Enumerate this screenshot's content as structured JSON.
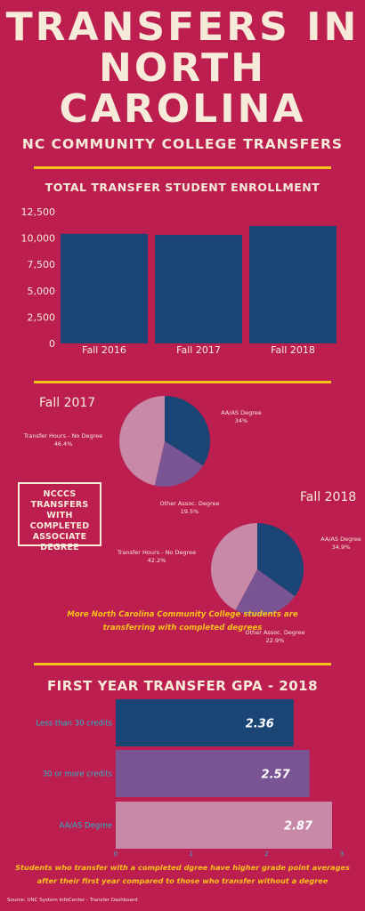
{
  "title": {
    "line1": "TRANSFERS IN",
    "line2": "NORTH",
    "line3": "CAROLINA"
  },
  "subtitle": "NC COMMUNITY COLLEGE TRANSFERS",
  "colors": {
    "background": "#bb1e4f",
    "accent": "#f7c21a",
    "navy": "#1a4574",
    "purple": "#7b5494",
    "pink": "#c889a8"
  },
  "chart_data": [
    {
      "type": "bar",
      "title": "TOTAL TRANSFER STUDENT ENROLLMENT",
      "categories": [
        "Fall 2016",
        "Fall 2017",
        "Fall 2018"
      ],
      "values": [
        10400,
        10300,
        11150
      ],
      "ylim": [
        0,
        12500
      ],
      "yticks": [
        0,
        2500,
        5000,
        7500,
        10000,
        12500
      ],
      "ytick_labels": [
        "0",
        "2,500",
        "5,000",
        "7,500",
        "10,000",
        "12,500"
      ],
      "grid": false
    },
    {
      "type": "pie",
      "title": "Fall 2017",
      "slices": [
        {
          "label": "AA/AS Degree",
          "value": 34,
          "display": "34%"
        },
        {
          "label": "Other Assoc. Degree",
          "value": 19.5,
          "display": "19.5%"
        },
        {
          "label": "Transfer Hours - No Degree",
          "value": 46.4,
          "display": "46.4%"
        }
      ]
    },
    {
      "type": "pie",
      "title": "Fall 2018",
      "slices": [
        {
          "label": "AA/AS Degree",
          "value": 34.9,
          "display": "34.9%"
        },
        {
          "label": "Other Assoc. Degree",
          "value": 22.9,
          "display": "22.9%"
        },
        {
          "label": "Transfer Hours - No Degree",
          "value": 42.2,
          "display": "42.2%"
        }
      ]
    },
    {
      "type": "bar",
      "orientation": "horizontal",
      "title": "FIRST YEAR TRANSFER GPA - 2018",
      "categories": [
        "Less than 30 credits",
        "30 or more credits",
        "AA/AS Degree"
      ],
      "values": [
        2.36,
        2.57,
        2.87
      ],
      "value_labels": [
        "2.36",
        "2.57",
        "2.87"
      ],
      "xlim": [
        0,
        3
      ],
      "xticks": [
        "0",
        "1",
        "2",
        "3"
      ]
    }
  ],
  "ncccs_box": {
    "line1": "NCCCS",
    "line2": "TRANSFERS WITH",
    "line3": "COMPLETED",
    "line4": "ASSOCIATE",
    "line5": "DEGREE"
  },
  "notes": {
    "pie_note_line1": "More North Carolina Community College students are",
    "pie_note_line2": "transferring with completed degrees",
    "gpa_note_line1": "Students who transfer with a completed dgree have higher grade point averages",
    "gpa_note_line2": "after their first year compared to those who transfer without a degree"
  },
  "source": "Source: UNC System InfoCenter - Transfer Dashboard"
}
